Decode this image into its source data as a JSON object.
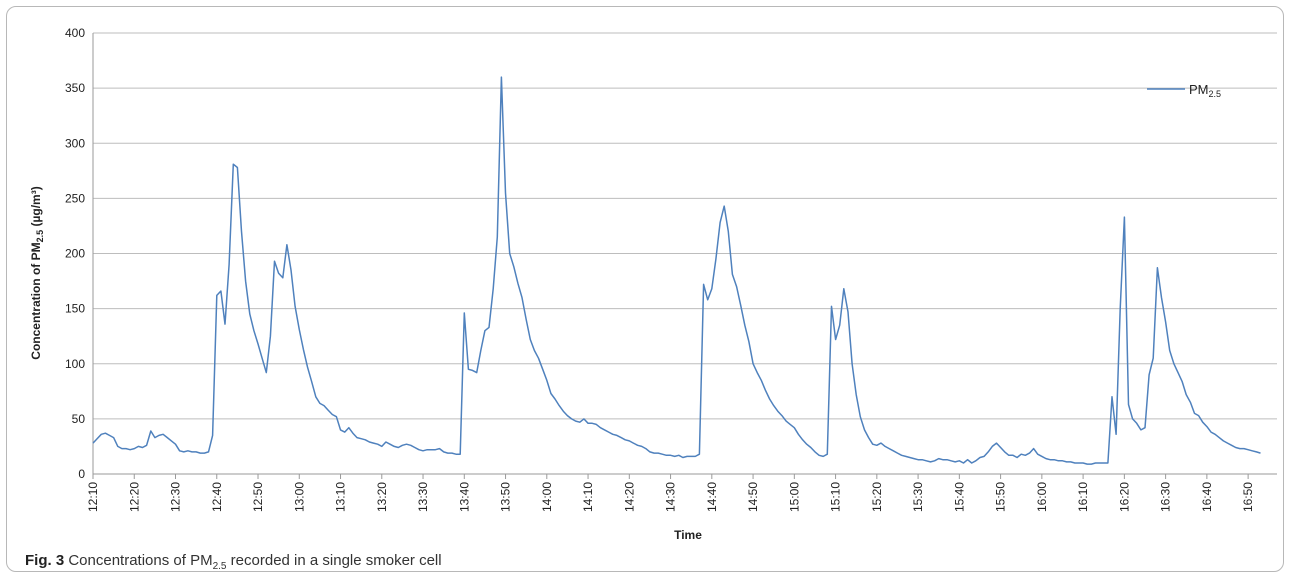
{
  "chart_data": {
    "type": "line",
    "ylabel": "Concentration of PM2.5 (µg/m³)",
    "ylabel_main": "Concentration of PM",
    "ylabel_sub": "2.5",
    "ylabel_unit": "(µg/m³)",
    "xlabel": "Time",
    "ylim": [
      0,
      400
    ],
    "yticks": [
      0,
      50,
      100,
      150,
      200,
      250,
      300,
      350,
      400
    ],
    "grid": true,
    "legend_position": "top-right",
    "xlim": [
      "12:10",
      "16:57"
    ],
    "xtick_labels": [
      "12:10",
      "12:20",
      "12:30",
      "12:40",
      "12:50",
      "13:00",
      "13:10",
      "13:20",
      "13:30",
      "13:40",
      "13:50",
      "14:00",
      "14:10",
      "14:20",
      "14:30",
      "14:40",
      "14:50",
      "15:00",
      "15:10",
      "15:20",
      "15:30",
      "15:40",
      "15:50",
      "16:00",
      "16:10",
      "16:20",
      "16:30",
      "16:40",
      "16:50"
    ],
    "series": [
      {
        "name": "PM2.5",
        "name_main": "PM",
        "name_sub": "2.5",
        "color": "#4f81bd",
        "points": [
          [
            "12:10",
            28
          ],
          [
            "12:11",
            32
          ],
          [
            "12:12",
            36
          ],
          [
            "12:13",
            37
          ],
          [
            "12:14",
            35
          ],
          [
            "12:15",
            33
          ],
          [
            "12:16",
            25
          ],
          [
            "12:17",
            23
          ],
          [
            "12:18",
            23
          ],
          [
            "12:19",
            22
          ],
          [
            "12:20",
            23
          ],
          [
            "12:21",
            25
          ],
          [
            "12:22",
            24
          ],
          [
            "12:23",
            26
          ],
          [
            "12:24",
            39
          ],
          [
            "12:25",
            33
          ],
          [
            "12:26",
            35
          ],
          [
            "12:27",
            36
          ],
          [
            "12:28",
            33
          ],
          [
            "12:29",
            30
          ],
          [
            "12:30",
            27
          ],
          [
            "12:31",
            21
          ],
          [
            "12:32",
            20
          ],
          [
            "12:33",
            21
          ],
          [
            "12:34",
            20
          ],
          [
            "12:35",
            20
          ],
          [
            "12:36",
            19
          ],
          [
            "12:37",
            19
          ],
          [
            "12:38",
            20
          ],
          [
            "12:39",
            35
          ],
          [
            "12:40",
            162
          ],
          [
            "12:41",
            166
          ],
          [
            "12:42",
            136
          ],
          [
            "12:43",
            190
          ],
          [
            "12:44",
            281
          ],
          [
            "12:45",
            278
          ],
          [
            "12:46",
            220
          ],
          [
            "12:47",
            175
          ],
          [
            "12:48",
            145
          ],
          [
            "12:49",
            130
          ],
          [
            "12:50",
            118
          ],
          [
            "12:51",
            105
          ],
          [
            "12:52",
            92
          ],
          [
            "12:53",
            125
          ],
          [
            "12:54",
            193
          ],
          [
            "12:55",
            182
          ],
          [
            "12:56",
            178
          ],
          [
            "12:57",
            208
          ],
          [
            "12:58",
            185
          ],
          [
            "12:59",
            152
          ],
          [
            "13:00",
            131
          ],
          [
            "13:01",
            113
          ],
          [
            "13:02",
            97
          ],
          [
            "13:03",
            84
          ],
          [
            "13:04",
            70
          ],
          [
            "13:05",
            64
          ],
          [
            "13:06",
            62
          ],
          [
            "13:07",
            58
          ],
          [
            "13:08",
            54
          ],
          [
            "13:09",
            52
          ],
          [
            "13:10",
            40
          ],
          [
            "13:11",
            38
          ],
          [
            "13:12",
            42
          ],
          [
            "13:13",
            37
          ],
          [
            "13:14",
            33
          ],
          [
            "13:15",
            32
          ],
          [
            "13:16",
            31
          ],
          [
            "13:17",
            29
          ],
          [
            "13:18",
            28
          ],
          [
            "13:19",
            27
          ],
          [
            "13:20",
            25
          ],
          [
            "13:21",
            29
          ],
          [
            "13:22",
            27
          ],
          [
            "13:23",
            25
          ],
          [
            "13:24",
            24
          ],
          [
            "13:25",
            26
          ],
          [
            "13:26",
            27
          ],
          [
            "13:27",
            26
          ],
          [
            "13:28",
            24
          ],
          [
            "13:29",
            22
          ],
          [
            "13:30",
            21
          ],
          [
            "13:31",
            22
          ],
          [
            "13:32",
            22
          ],
          [
            "13:33",
            22
          ],
          [
            "13:34",
            23
          ],
          [
            "13:35",
            20
          ],
          [
            "13:36",
            19
          ],
          [
            "13:37",
            19
          ],
          [
            "13:38",
            18
          ],
          [
            "13:39",
            18
          ],
          [
            "13:40",
            146
          ],
          [
            "13:41",
            95
          ],
          [
            "13:42",
            94
          ],
          [
            "13:43",
            92
          ],
          [
            "13:44",
            112
          ],
          [
            "13:45",
            130
          ],
          [
            "13:46",
            133
          ],
          [
            "13:47",
            168
          ],
          [
            "13:48",
            215
          ],
          [
            "13:49",
            360
          ],
          [
            "13:50",
            255
          ],
          [
            "13:51",
            200
          ],
          [
            "13:52",
            188
          ],
          [
            "13:53",
            173
          ],
          [
            "13:54",
            160
          ],
          [
            "13:55",
            140
          ],
          [
            "13:56",
            122
          ],
          [
            "13:57",
            112
          ],
          [
            "13:58",
            105
          ],
          [
            "13:59",
            95
          ],
          [
            "14:00",
            85
          ],
          [
            "14:01",
            73
          ],
          [
            "14:02",
            68
          ],
          [
            "14:03",
            62
          ],
          [
            "14:04",
            57
          ],
          [
            "14:05",
            53
          ],
          [
            "14:06",
            50
          ],
          [
            "14:07",
            48
          ],
          [
            "14:08",
            47
          ],
          [
            "14:09",
            50
          ],
          [
            "14:10",
            46
          ],
          [
            "14:11",
            46
          ],
          [
            "14:12",
            45
          ],
          [
            "14:13",
            42
          ],
          [
            "14:14",
            40
          ],
          [
            "14:15",
            38
          ],
          [
            "14:16",
            36
          ],
          [
            "14:17",
            35
          ],
          [
            "14:18",
            33
          ],
          [
            "14:19",
            31
          ],
          [
            "14:20",
            30
          ],
          [
            "14:21",
            28
          ],
          [
            "14:22",
            26
          ],
          [
            "14:23",
            25
          ],
          [
            "14:24",
            23
          ],
          [
            "14:25",
            20
          ],
          [
            "14:26",
            19
          ],
          [
            "14:27",
            19
          ],
          [
            "14:28",
            18
          ],
          [
            "14:29",
            17
          ],
          [
            "14:30",
            17
          ],
          [
            "14:31",
            16
          ],
          [
            "14:32",
            17
          ],
          [
            "14:33",
            15
          ],
          [
            "14:34",
            16
          ],
          [
            "14:35",
            16
          ],
          [
            "14:36",
            16
          ],
          [
            "14:37",
            18
          ],
          [
            "14:38",
            172
          ],
          [
            "14:39",
            158
          ],
          [
            "14:40",
            168
          ],
          [
            "14:41",
            195
          ],
          [
            "14:42",
            228
          ],
          [
            "14:43",
            243
          ],
          [
            "14:44",
            220
          ],
          [
            "14:45",
            181
          ],
          [
            "14:46",
            170
          ],
          [
            "14:47",
            153
          ],
          [
            "14:48",
            135
          ],
          [
            "14:49",
            120
          ],
          [
            "14:50",
            100
          ],
          [
            "14:51",
            92
          ],
          [
            "14:52",
            85
          ],
          [
            "14:53",
            76
          ],
          [
            "14:54",
            68
          ],
          [
            "14:55",
            62
          ],
          [
            "14:56",
            57
          ],
          [
            "14:57",
            53
          ],
          [
            "14:58",
            48
          ],
          [
            "14:59",
            45
          ],
          [
            "15:00",
            42
          ],
          [
            "15:01",
            36
          ],
          [
            "15:02",
            31
          ],
          [
            "15:03",
            27
          ],
          [
            "15:04",
            24
          ],
          [
            "15:05",
            20
          ],
          [
            "15:06",
            17
          ],
          [
            "15:07",
            16
          ],
          [
            "15:08",
            18
          ],
          [
            "15:09",
            152
          ],
          [
            "15:10",
            122
          ],
          [
            "15:11",
            135
          ],
          [
            "15:12",
            168
          ],
          [
            "15:13",
            147
          ],
          [
            "15:14",
            100
          ],
          [
            "15:15",
            72
          ],
          [
            "15:16",
            52
          ],
          [
            "15:17",
            40
          ],
          [
            "15:18",
            33
          ],
          [
            "15:19",
            27
          ],
          [
            "15:20",
            26
          ],
          [
            "15:21",
            28
          ],
          [
            "15:22",
            25
          ],
          [
            "15:23",
            23
          ],
          [
            "15:24",
            21
          ],
          [
            "15:25",
            19
          ],
          [
            "15:26",
            17
          ],
          [
            "15:27",
            16
          ],
          [
            "15:28",
            15
          ],
          [
            "15:29",
            14
          ],
          [
            "15:30",
            13
          ],
          [
            "15:31",
            13
          ],
          [
            "15:32",
            12
          ],
          [
            "15:33",
            11
          ],
          [
            "15:34",
            12
          ],
          [
            "15:35",
            14
          ],
          [
            "15:36",
            13
          ],
          [
            "15:37",
            13
          ],
          [
            "15:38",
            12
          ],
          [
            "15:39",
            11
          ],
          [
            "15:40",
            12
          ],
          [
            "15:41",
            10
          ],
          [
            "15:42",
            13
          ],
          [
            "15:43",
            10
          ],
          [
            "15:44",
            12
          ],
          [
            "15:45",
            15
          ],
          [
            "15:46",
            16
          ],
          [
            "15:47",
            20
          ],
          [
            "15:48",
            25
          ],
          [
            "15:49",
            28
          ],
          [
            "15:50",
            24
          ],
          [
            "15:51",
            20
          ],
          [
            "15:52",
            17
          ],
          [
            "15:53",
            17
          ],
          [
            "15:54",
            15
          ],
          [
            "15:55",
            18
          ],
          [
            "15:56",
            17
          ],
          [
            "15:57",
            19
          ],
          [
            "15:58",
            23
          ],
          [
            "15:59",
            18
          ],
          [
            "16:00",
            16
          ],
          [
            "16:01",
            14
          ],
          [
            "16:02",
            13
          ],
          [
            "16:03",
            13
          ],
          [
            "16:04",
            12
          ],
          [
            "16:05",
            12
          ],
          [
            "16:06",
            11
          ],
          [
            "16:07",
            11
          ],
          [
            "16:08",
            10
          ],
          [
            "16:09",
            10
          ],
          [
            "16:10",
            10
          ],
          [
            "16:11",
            9
          ],
          [
            "16:12",
            9
          ],
          [
            "16:13",
            10
          ],
          [
            "16:14",
            10
          ],
          [
            "16:15",
            10
          ],
          [
            "16:16",
            10
          ],
          [
            "16:17",
            70
          ],
          [
            "16:18",
            36
          ],
          [
            "16:19",
            150
          ],
          [
            "16:20",
            233
          ],
          [
            "16:21",
            63
          ],
          [
            "16:22",
            50
          ],
          [
            "16:23",
            46
          ],
          [
            "16:24",
            40
          ],
          [
            "16:25",
            42
          ],
          [
            "16:26",
            90
          ],
          [
            "16:27",
            105
          ],
          [
            "16:28",
            187
          ],
          [
            "16:29",
            160
          ],
          [
            "16:30",
            138
          ],
          [
            "16:31",
            112
          ],
          [
            "16:32",
            100
          ],
          [
            "16:33",
            92
          ],
          [
            "16:34",
            84
          ],
          [
            "16:35",
            72
          ],
          [
            "16:36",
            65
          ],
          [
            "16:37",
            55
          ],
          [
            "16:38",
            53
          ],
          [
            "16:39",
            47
          ],
          [
            "16:40",
            43
          ],
          [
            "16:41",
            38
          ],
          [
            "16:42",
            36
          ],
          [
            "16:43",
            33
          ],
          [
            "16:44",
            30
          ],
          [
            "16:45",
            28
          ],
          [
            "16:46",
            26
          ],
          [
            "16:47",
            24
          ],
          [
            "16:48",
            23
          ],
          [
            "16:49",
            23
          ],
          [
            "16:50",
            22
          ],
          [
            "16:51",
            21
          ],
          [
            "16:52",
            20
          ],
          [
            "16:53",
            19
          ]
        ]
      }
    ]
  },
  "caption": {
    "label": "Fig. 3",
    "text_before": "Concentrations of PM",
    "text_sub": "2.5",
    "text_after": "recorded in a single smoker cell"
  }
}
